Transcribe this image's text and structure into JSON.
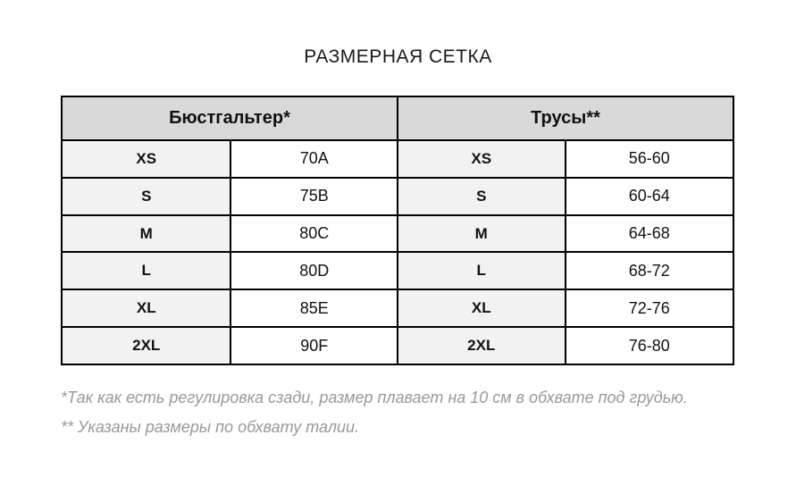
{
  "title": "РАЗМЕРНАЯ СЕТКА",
  "chart_data": {
    "type": "table",
    "title": "РАЗМЕРНАЯ СЕТКА",
    "column_groups": [
      {
        "header": "Бюстгальтер*"
      },
      {
        "header": "Трусы**"
      }
    ],
    "rows": [
      {
        "bra_size": "XS",
        "bra_value": "70A",
        "panties_size": "XS",
        "panties_value": "56-60"
      },
      {
        "bra_size": "S",
        "bra_value": "75B",
        "panties_size": "S",
        "panties_value": "60-64"
      },
      {
        "bra_size": "M",
        "bra_value": "80C",
        "panties_size": "M",
        "panties_value": "64-68"
      },
      {
        "bra_size": "L",
        "bra_value": "80D",
        "panties_size": "L",
        "panties_value": "68-72"
      },
      {
        "bra_size": "XL",
        "bra_value": "85E",
        "panties_size": "XL",
        "panties_value": "72-76"
      },
      {
        "bra_size": "2XL",
        "bra_value": "90F",
        "panties_size": "2XL",
        "panties_value": "76-80"
      }
    ],
    "footnotes": [
      "*Так как есть регулировка сзади, размер плавает на 10 см в обхвате под грудью.",
      "** Указаны размеры по обхвату талии."
    ]
  },
  "colors": {
    "page_bg": "#ffffff",
    "header_bg": "#d9d9d9",
    "size_cell_bg": "#f2f2f2",
    "value_cell_bg": "#ffffff",
    "border": "#000000",
    "title_text": "#1a1a1a",
    "footnote_text": "#999999"
  }
}
